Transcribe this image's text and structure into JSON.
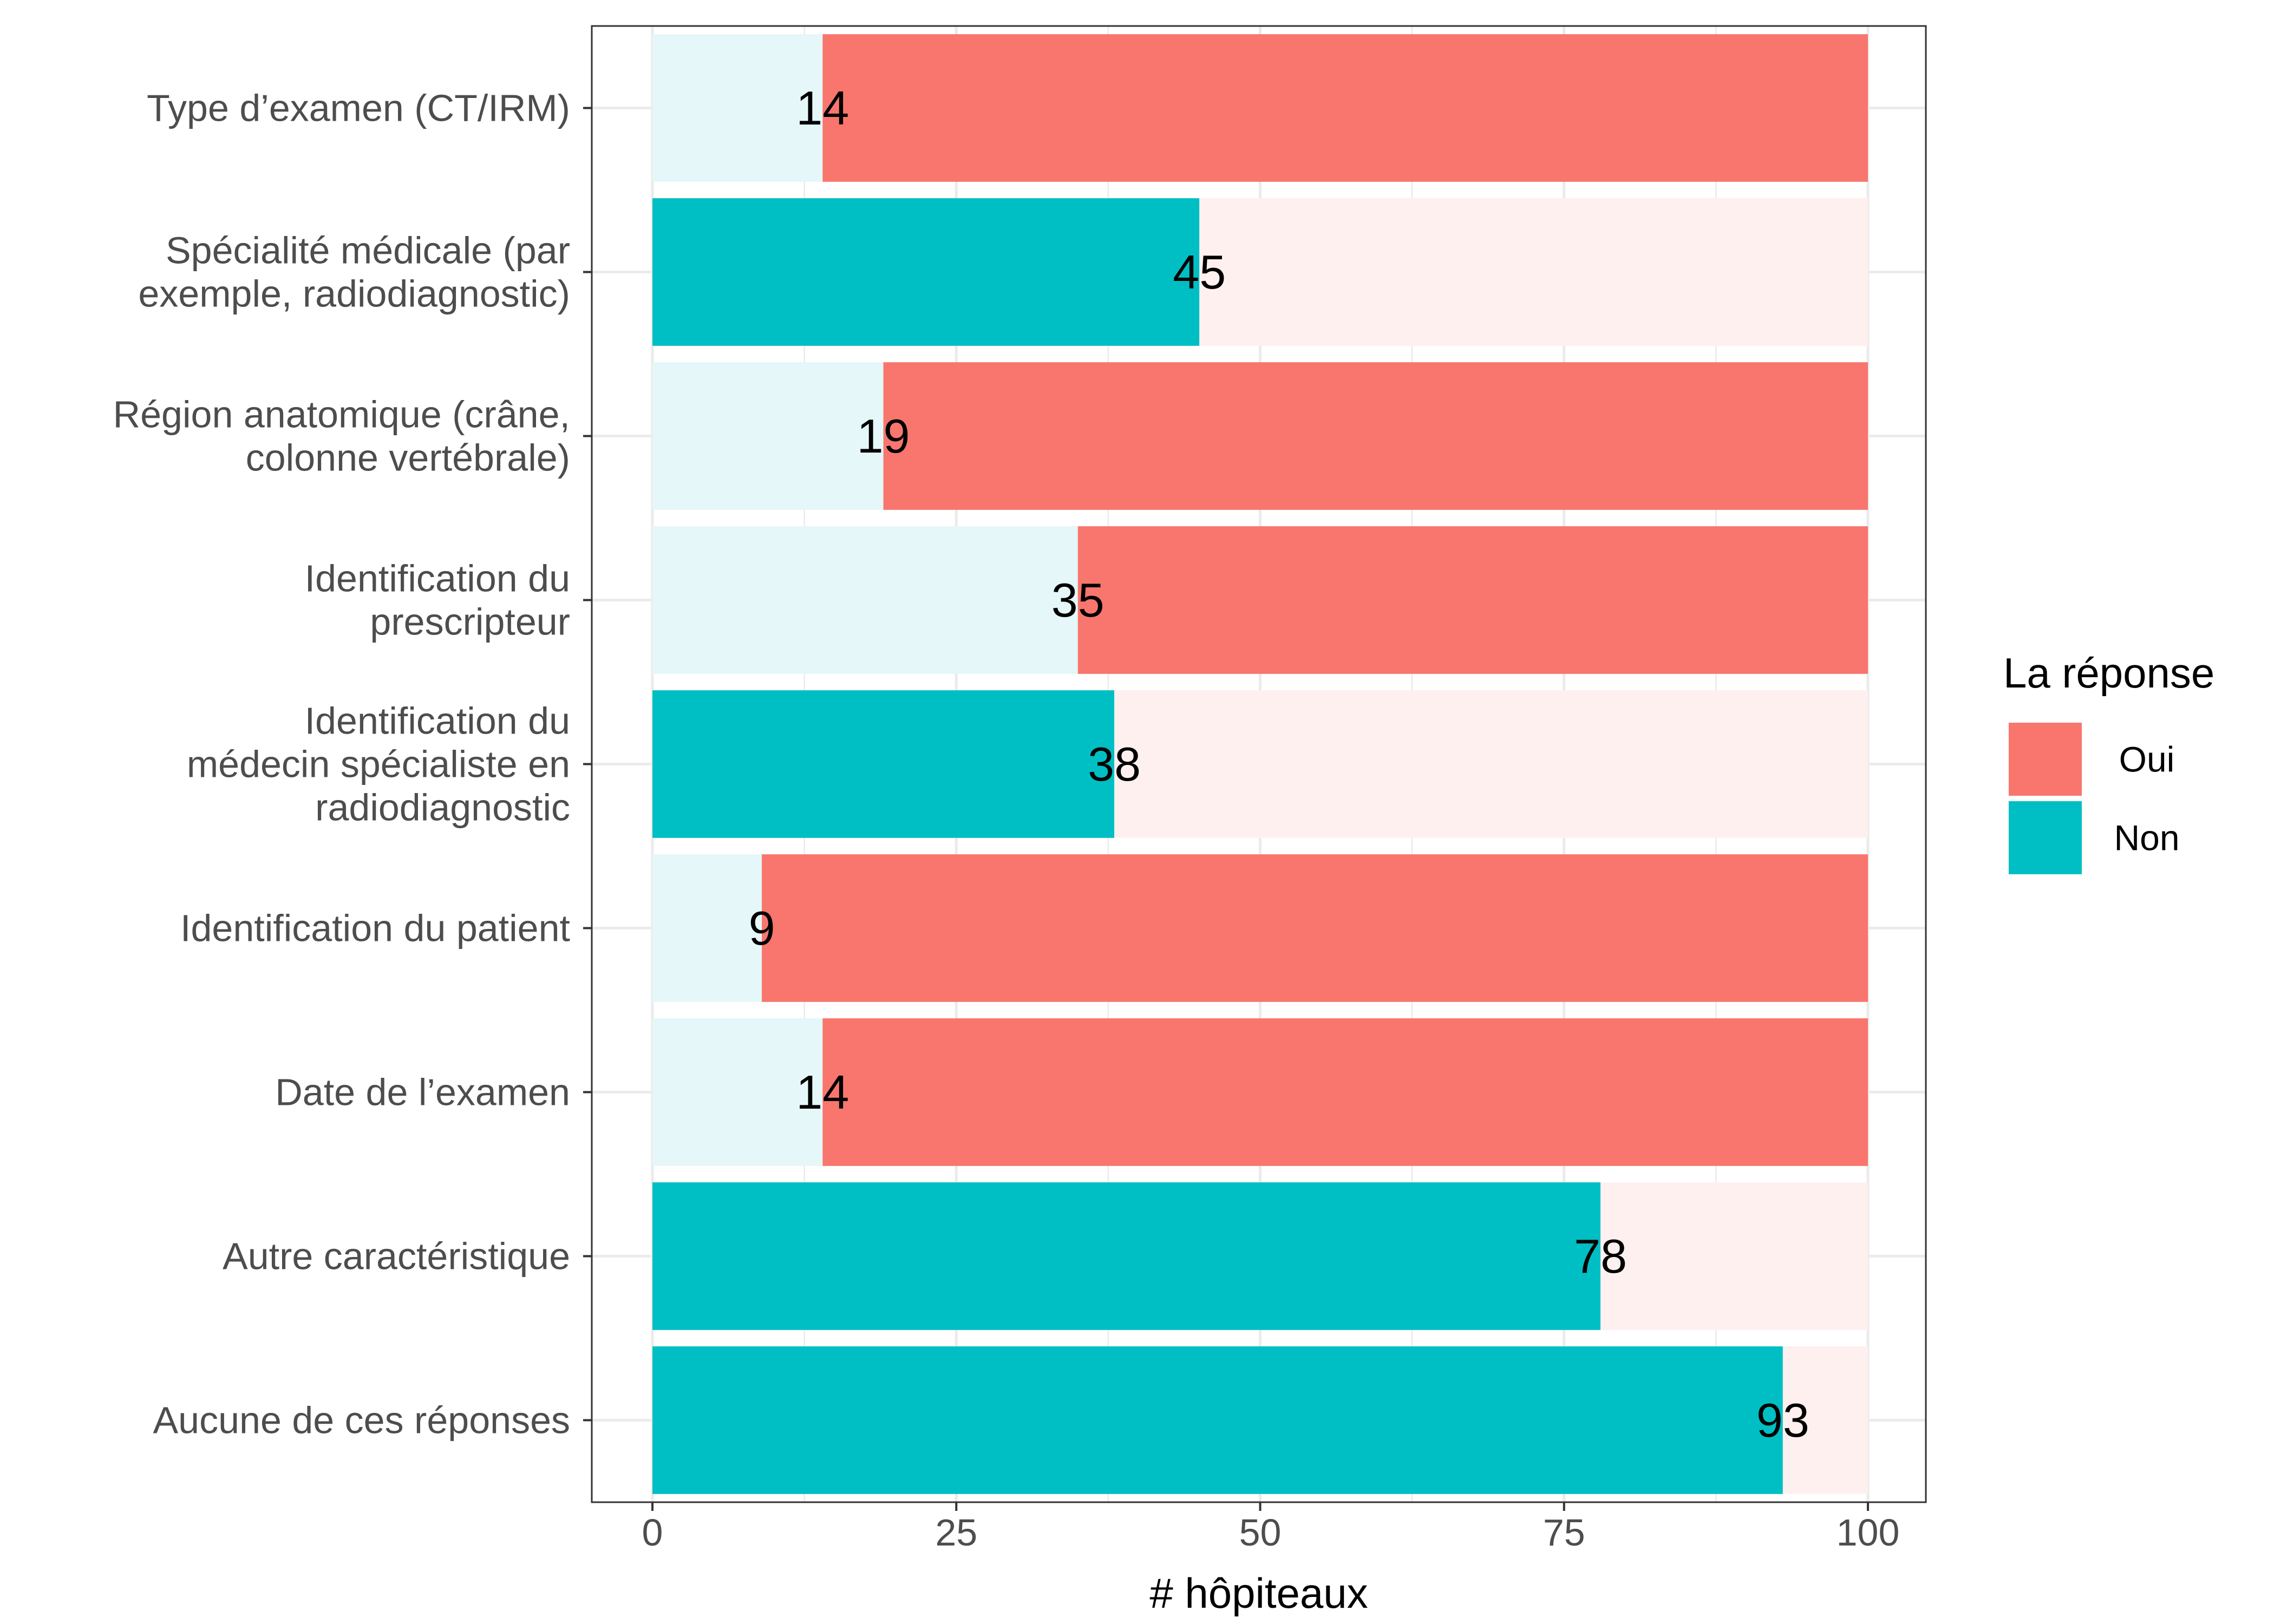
{
  "chart_data": {
    "type": "bar",
    "orientation": "horizontal",
    "stacked": true,
    "categories": [
      "Type d’examen (CT/IRM)",
      "Spécialité médicale (par exemple, radiodiagnostic)",
      "Région anatomique (crâne, colonne vertébrale)",
      "Identification du prescripteur",
      "Identification du médecin spécialiste en radiodiagnostic",
      "Identification du patient",
      "Date de l’examen",
      "Autre caractéristique",
      "Aucune de ces réponses"
    ],
    "category_lines": [
      [
        "Type d’examen (CT/IRM)"
      ],
      [
        "Spécialité médicale (par",
        "exemple, radiodiagnostic)"
      ],
      [
        "Région anatomique (crâne,",
        "colonne vertébrale)"
      ],
      [
        "Identification du",
        "prescripteur"
      ],
      [
        "Identification du",
        "médecin spécialiste en",
        "radiodiagnostic"
      ],
      [
        "Identification du patient"
      ],
      [
        "Date de l’examen"
      ],
      [
        "Autre caractéristique"
      ],
      [
        "Aucune de ces réponses"
      ]
    ],
    "series": [
      {
        "name": "Non",
        "values": [
          14,
          45,
          19,
          35,
          38,
          9,
          14,
          78,
          93
        ]
      },
      {
        "name": "Oui",
        "values": [
          86,
          55,
          81,
          65,
          62,
          91,
          86,
          22,
          7
        ]
      }
    ],
    "highlighted": [
      "Oui",
      "Non",
      "Oui",
      "Oui",
      "Non",
      "Oui",
      "Oui",
      "Non",
      "Non"
    ],
    "data_labels": [
      "14",
      "45",
      "19",
      "35",
      "38",
      "9",
      "14",
      "78",
      "93"
    ],
    "xlabel": "# hôpiteaux",
    "ylabel": "",
    "xlim": [
      0,
      100
    ],
    "xticks": [
      0,
      25,
      50,
      75,
      100
    ],
    "xtick_labels": [
      "0",
      "25",
      "50",
      "75",
      "100"
    ],
    "legend": {
      "title": "La réponse",
      "position": "right",
      "entries": [
        {
          "label": "Oui",
          "color": "#F8766D"
        },
        {
          "label": "Non",
          "color": "#00BFC4"
        }
      ]
    },
    "colors": {
      "Oui": "#F8766D",
      "Non": "#00BFC4",
      "Oui_faded": "#FEF0EF",
      "Non_faded": "#E5F7F8",
      "grid": "#EBEBEB",
      "panel_border": "#333333"
    }
  }
}
